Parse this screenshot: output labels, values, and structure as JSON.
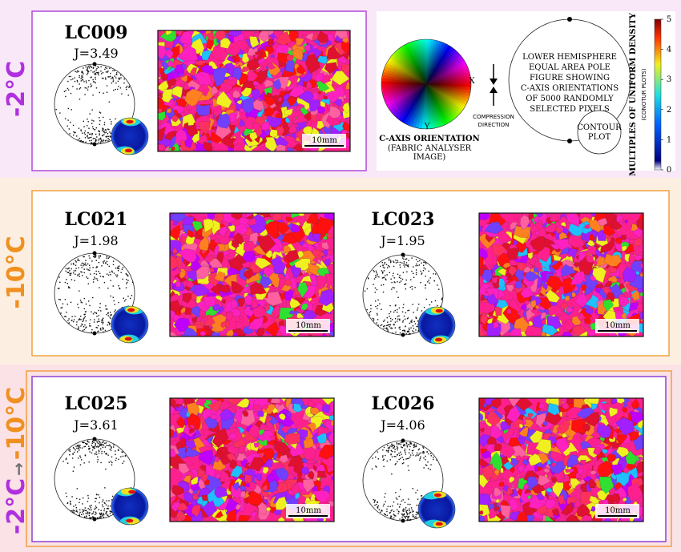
{
  "rows": [
    {
      "label": [
        "-2°C"
      ],
      "samples": [
        {
          "name": "LC009",
          "j": "J=3.49",
          "scale": "10mm"
        }
      ]
    },
    {
      "label": [
        "-10°C"
      ],
      "samples": [
        {
          "name": "LC021",
          "j": "J=1.98",
          "scale": "10mm"
        },
        {
          "name": "LC023",
          "j": "J=1.95",
          "scale": "10mm"
        }
      ]
    },
    {
      "label": [
        "-2°C",
        "→",
        "-10°C"
      ],
      "samples": [
        {
          "name": "LC025",
          "j": "J=3.61",
          "scale": "10mm"
        },
        {
          "name": "LC026",
          "j": "J=4.06",
          "scale": "10mm"
        }
      ]
    }
  ],
  "legend": {
    "x_axis": "X",
    "y_axis": "Y",
    "wheel_title": "C-AXIS ORIENTATION",
    "wheel_sub": [
      "(FABRIC ANALYSER",
      "IMAGE)"
    ],
    "compression": [
      "COMPRESSION",
      "DIRECTION"
    ],
    "pole_text": [
      "LOWER HEMISPHERE",
      "EQUAL AREA POLE",
      "FIGURE SHOWING",
      "C-AXIS ORIENTATIONS",
      "OF 5000 RANDOMLY",
      "SELECTED PIXELS"
    ],
    "contour_text": [
      "CONTOUR",
      "PLOT"
    ]
  },
  "colorbar": {
    "title": "MULTIPLES OF UNIFORM DENSITY",
    "subtitle": "(CONOTUR PLOTS)",
    "ticks": [
      0,
      1,
      2,
      3,
      4,
      5
    ]
  }
}
